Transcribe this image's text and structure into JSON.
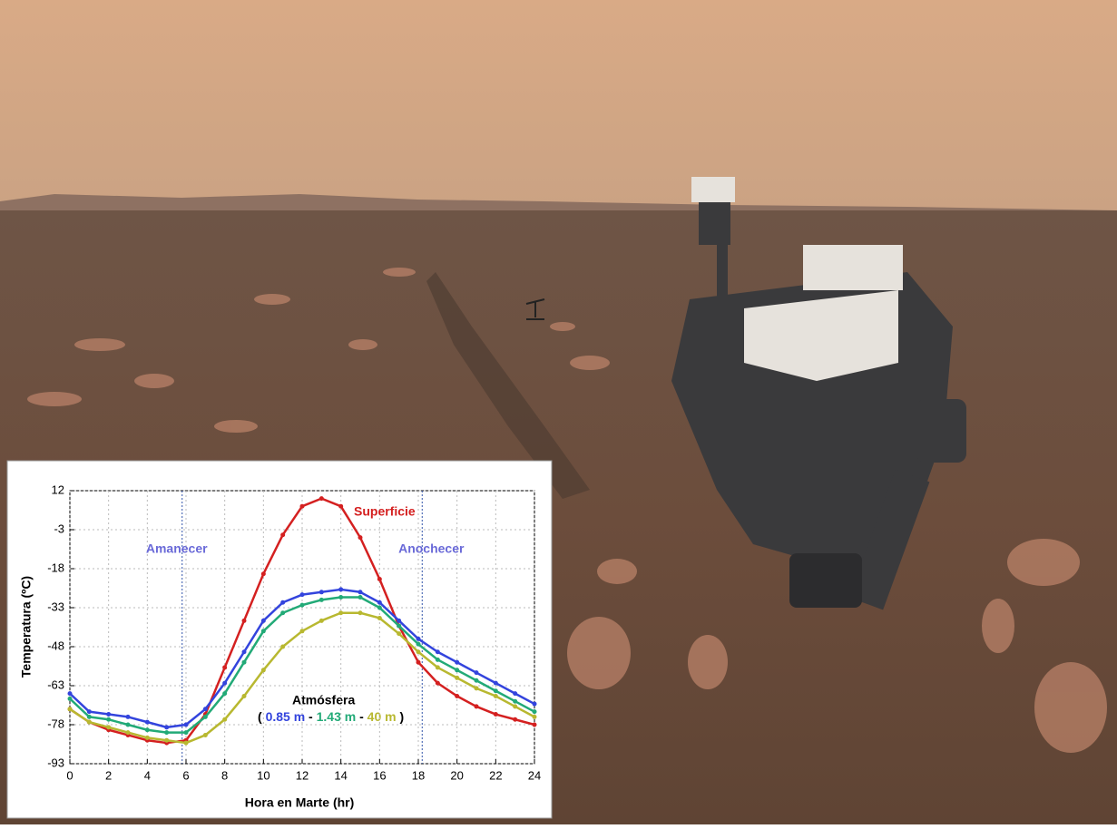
{
  "chart_data": {
    "type": "line",
    "x_label": "Hora en Marte (hr)",
    "y_label": "Temperatura (ºC)",
    "xlim": [
      0,
      24
    ],
    "xticks": [
      0,
      2,
      4,
      6,
      8,
      10,
      12,
      14,
      16,
      18,
      20,
      22,
      24
    ],
    "ylim": [
      -93,
      12
    ],
    "yticks": [
      12,
      -3,
      -18,
      -33,
      -48,
      -63,
      -78,
      -93
    ],
    "grid": true,
    "vlines": [
      {
        "value": 5.8,
        "label": "Amanecer"
      },
      {
        "value": 18.2,
        "label": "Anochecer"
      }
    ],
    "legend_title": "Atmósfera",
    "legend_brackets": [
      "(",
      ")"
    ],
    "legend_separator": "-",
    "x": [
      0,
      1,
      2,
      3,
      4,
      5,
      6,
      7,
      8,
      9,
      10,
      11,
      12,
      13,
      14,
      15,
      16,
      17,
      18,
      19,
      20,
      21,
      22,
      23,
      24
    ],
    "series": [
      {
        "name": "Superficie",
        "color": "#d42020",
        "values": [
          -72,
          -77,
          -80,
          -82,
          -84,
          -85,
          -84,
          -74,
          -56,
          -38,
          -20,
          -5,
          6,
          9,
          6,
          -6,
          -22,
          -40,
          -54,
          -62,
          -67,
          -71,
          -74,
          -76,
          -78
        ]
      },
      {
        "name": "0.85 m",
        "color": "#3344dd",
        "values": [
          -66,
          -73,
          -74,
          -75,
          -77,
          -79,
          -78,
          -72,
          -62,
          -50,
          -38,
          -31,
          -28,
          -27,
          -26,
          -27,
          -31,
          -38,
          -45,
          -50,
          -54,
          -58,
          -62,
          -66,
          -70
        ]
      },
      {
        "name": "1.43 m",
        "color": "#22aa77",
        "values": [
          -68,
          -75,
          -76,
          -78,
          -80,
          -81,
          -81,
          -75,
          -66,
          -54,
          -42,
          -35,
          -32,
          -30,
          -29,
          -29,
          -33,
          -40,
          -47,
          -53,
          -57,
          -61,
          -65,
          -69,
          -73
        ]
      },
      {
        "name": "40 m",
        "color": "#b8b830",
        "values": [
          -72,
          -77,
          -79,
          -81,
          -83,
          -84,
          -85,
          -82,
          -76,
          -67,
          -57,
          -48,
          -42,
          -38,
          -35,
          -35,
          -37,
          -43,
          -50,
          -56,
          -60,
          -64,
          -67,
          -71,
          -75
        ]
      }
    ]
  }
}
